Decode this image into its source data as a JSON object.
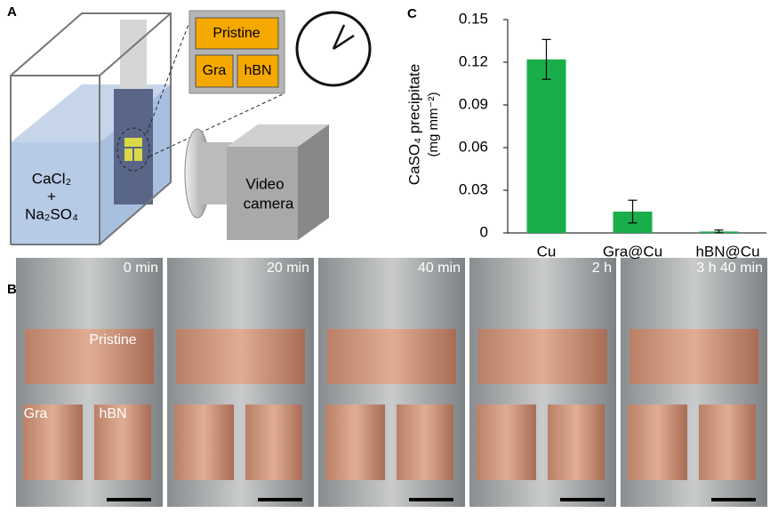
{
  "panel_a": {
    "label": "A",
    "solution": [
      "CaCl₂",
      "+",
      "Na₂SO₄"
    ],
    "inset": [
      "Pristine",
      "Gra",
      "hBN"
    ],
    "camera": [
      "Video",
      "camera"
    ]
  },
  "panel_b": {
    "label": "B",
    "frames": [
      "0 min",
      "20 min",
      "40 min",
      "2 h",
      "3 h 40 min"
    ],
    "sample_labels": [
      "Pristine",
      "Gra",
      "hBN"
    ]
  },
  "chart_data": {
    "type": "bar",
    "panel_label": "C",
    "y_label": [
      "CaSO₄ precipitate",
      "(mg mm⁻²)"
    ],
    "categories": [
      "Cu",
      "Gra@Cu",
      "hBN@Cu"
    ],
    "values": [
      0.122,
      0.015,
      0.001
    ],
    "errors": [
      0.014,
      0.008,
      0.001
    ],
    "color": "#1aae4a",
    "ylim": [
      0,
      0.15
    ],
    "yticks": [
      0,
      0.03,
      0.06,
      0.09,
      0.12,
      0.15
    ],
    "grid": false
  }
}
